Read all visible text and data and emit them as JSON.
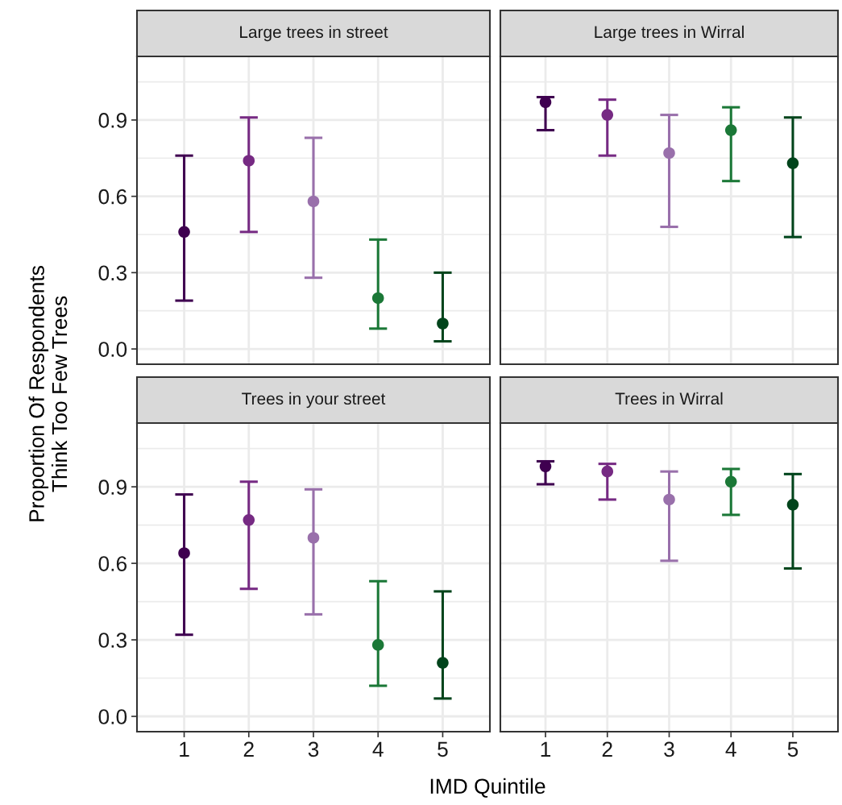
{
  "chart_data": [
    {
      "type": "scatter",
      "title": "Large trees in street",
      "ylabel": "Proportion Of Respondents\nThink Too Few Trees",
      "categories": [
        "1",
        "2",
        "3",
        "4",
        "5"
      ],
      "values": [
        0.46,
        0.74,
        0.58,
        0.2,
        0.1
      ],
      "errors": [
        [
          0.19,
          0.76
        ],
        [
          0.46,
          0.91
        ],
        [
          0.28,
          0.83
        ],
        [
          0.08,
          0.43
        ],
        [
          0.03,
          0.3
        ]
      ],
      "colors": [
        "#3f0050",
        "#762a83",
        "#9970ab",
        "#1b7837",
        "#00441b"
      ],
      "ylim": [
        -0.06,
        1.15
      ],
      "yticks": [
        {
          "value": 0,
          "label": "0.0"
        },
        0.3,
        0.6,
        0.9
      ],
      "grid": true,
      "marker": "circle",
      "tick_labels": "y"
    },
    {
      "type": "scatter",
      "title": "Large trees in Wirral",
      "categories": [
        "1",
        "2",
        "3",
        "4",
        "5"
      ],
      "values": [
        0.97,
        0.92,
        0.77,
        0.86,
        0.73
      ],
      "errors": [
        [
          0.86,
          0.99
        ],
        [
          0.76,
          0.98
        ],
        [
          0.48,
          0.92
        ],
        [
          0.66,
          0.95
        ],
        [
          0.44,
          0.91
        ]
      ],
      "colors": [
        "#3f0050",
        "#762a83",
        "#9970ab",
        "#1b7837",
        "#00441b"
      ],
      "ylim": [
        -0.06,
        1.15
      ],
      "yticks": [
        0,
        0.3,
        0.6,
        0.9
      ],
      "grid": true,
      "marker": "circle",
      "tick_labels": false
    },
    {
      "type": "scatter",
      "title": "Trees in your street",
      "xlabel": "IMD Quintile",
      "categories": [
        "1",
        "2",
        "3",
        "4",
        "5"
      ],
      "values": [
        0.64,
        0.77,
        0.7,
        0.28,
        0.21
      ],
      "errors": [
        [
          0.32,
          0.87
        ],
        [
          0.5,
          0.92
        ],
        [
          0.4,
          0.89
        ],
        [
          0.12,
          0.53
        ],
        [
          0.07,
          0.49
        ]
      ],
      "colors": [
        "#3f0050",
        "#762a83",
        "#9970ab",
        "#1b7837",
        "#00441b"
      ],
      "ylim": [
        -0.06,
        1.15
      ],
      "yticks": [
        {
          "value": 0,
          "label": "0.0"
        },
        0.3,
        0.6,
        0.9
      ],
      "grid": true,
      "marker": "circle"
    },
    {
      "type": "scatter",
      "title": "Trees in Wirral",
      "categories": [
        "1",
        "2",
        "3",
        "4",
        "5"
      ],
      "values": [
        0.98,
        0.96,
        0.85,
        0.92,
        0.83
      ],
      "errors": [
        [
          0.91,
          1.0
        ],
        [
          0.85,
          0.99
        ],
        [
          0.61,
          0.96
        ],
        [
          0.79,
          0.97
        ],
        [
          0.58,
          0.95
        ]
      ],
      "colors": [
        "#3f0050",
        "#762a83",
        "#9970ab",
        "#1b7837",
        "#00441b"
      ],
      "ylim": [
        -0.06,
        1.15
      ],
      "yticks": [
        0,
        0.3,
        0.6,
        0.9
      ],
      "grid": true,
      "marker": "circle",
      "tick_labels": "x"
    }
  ]
}
